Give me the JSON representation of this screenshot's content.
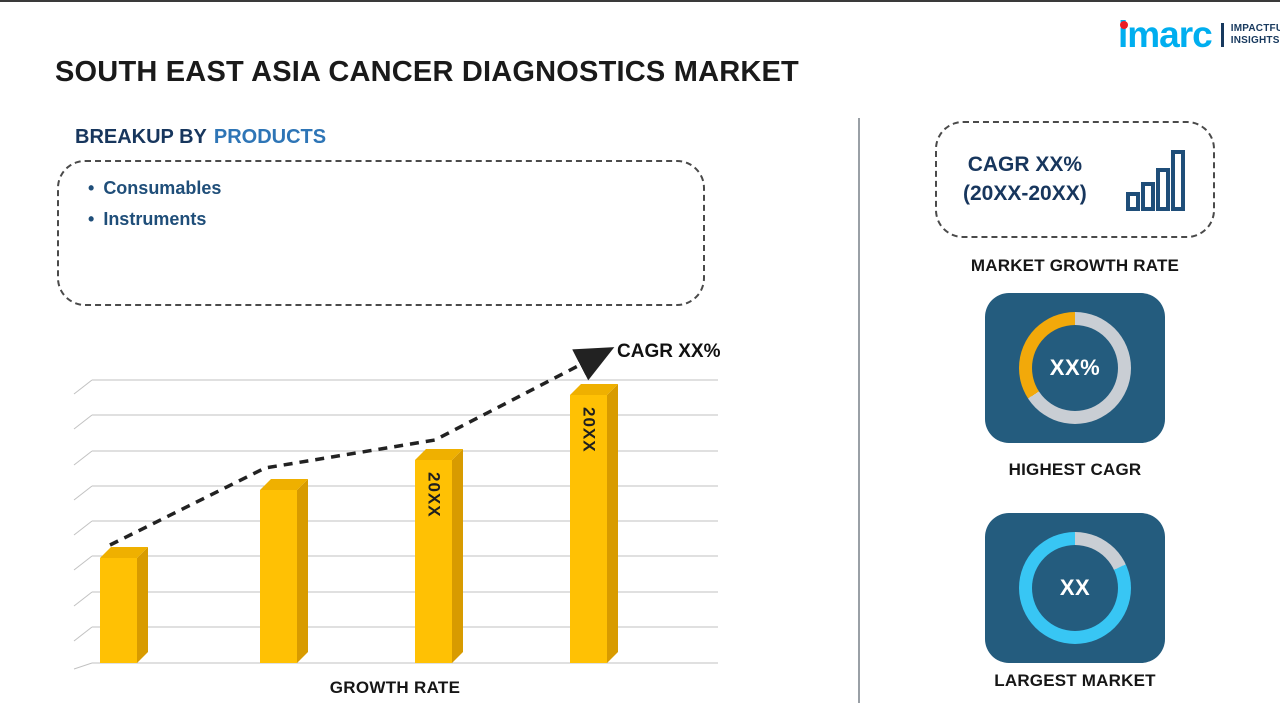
{
  "page": {
    "title_text": "SOUTH EAST ASIA CANCER DIAGNOSTICS MARKET"
  },
  "logo": {
    "brand": "imarc",
    "tagline_line1": "IMPACTFUL",
    "tagline_line2": "INSIGHTS"
  },
  "breakup": {
    "heading_prefix": "BREAKUP BY",
    "heading_highlight": "PRODUCTS",
    "items": [
      "Consumables",
      "Instruments"
    ]
  },
  "chart_data": {
    "type": "bar",
    "title": "",
    "categories": [
      "",
      "",
      "20XX",
      "20XX"
    ],
    "values": [
      105,
      173,
      203,
      268
    ],
    "values_unit": "relative bar height in px (no numeric y-axis shown)",
    "xlabel": "GROWTH RATE",
    "ylabel": "",
    "grid": "horizontal perspective gridlines, 3D style",
    "bar_color": "#FFC104",
    "trend": {
      "style": "dashed ascending arrow",
      "annotation": "CAGR XX%"
    }
  },
  "right_panel": {
    "cagr_box": {
      "line1": "CAGR XX%",
      "line2": "(20XX-20XX)"
    },
    "market_growth_rate_label": "MARKET GROWTH RATE",
    "highest_cagr": {
      "center_value": "XX%",
      "label": "HIGHEST CAGR"
    },
    "largest_market": {
      "center_value": "XX",
      "label": "LARGEST MARKET"
    }
  },
  "colors": {
    "bar_gold": "#FFC104",
    "tile_navy": "#245C7E",
    "donut_gray": "#C9CED4",
    "donut_yellow": "#F2A90A",
    "donut_cyan": "#38C6F4",
    "brand_cyan": "#00AEEF",
    "brand_red": "#EC1C24",
    "heading_blue": "#2E75B6",
    "navy_text": "#1F4E79"
  }
}
